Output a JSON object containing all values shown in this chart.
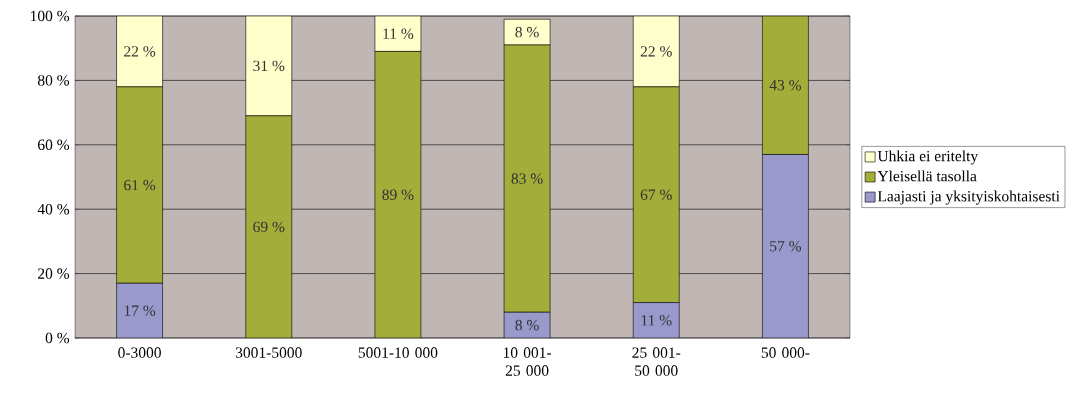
{
  "chart_data": {
    "type": "bar",
    "stacked": true,
    "categories": [
      "0-3000",
      "3001-5000",
      "5001-10 000",
      "10 001-25 000",
      "25 001-50 000",
      "50 000-"
    ],
    "series": [
      {
        "name": "Laajasti ja yksityiskohtaisesti",
        "color": "#9999cc",
        "values": [
          17,
          0,
          0,
          8,
          11,
          57
        ],
        "value_labels": [
          "17 %",
          null,
          null,
          "8 %",
          "11 %",
          "57 %"
        ]
      },
      {
        "name": "Yleisellä tasolla",
        "color": "#a3ad3a",
        "values": [
          61,
          69,
          89,
          83,
          67,
          43
        ],
        "value_labels": [
          "61 %",
          "69 %",
          "89 %",
          "83 %",
          "67 %",
          "43 %"
        ]
      },
      {
        "name": "Uhkia ei eritelty",
        "color": "#ffffcc",
        "values": [
          22,
          31,
          11,
          8,
          22,
          0
        ],
        "value_labels": [
          "22 %",
          "31 %",
          "11 %",
          "8 %",
          "22 %",
          null
        ]
      }
    ],
    "ylim": [
      0,
      100
    ],
    "yticks": [
      {
        "value": 0,
        "label": "0 %"
      },
      {
        "value": 20,
        "label": "20 %"
      },
      {
        "value": 40,
        "label": "40 %"
      },
      {
        "value": 60,
        "label": "60 %"
      },
      {
        "value": 80,
        "label": "80 %"
      },
      {
        "value": 100,
        "label": "100 %"
      }
    ],
    "grid": "y",
    "legend": "right"
  }
}
